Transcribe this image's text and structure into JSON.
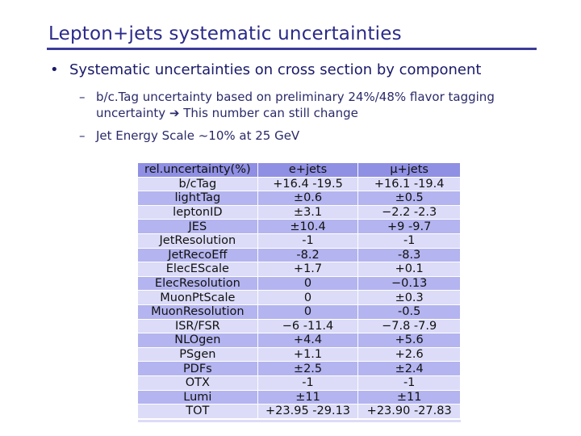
{
  "slide": {
    "title": "Lepton+jets systematic uncertainties",
    "bullet": "Systematic uncertainties on cross section by component",
    "subpoints": [
      {
        "line1": "b/c.Tag uncertainty based on preliminary 24%/48% flavor tagging",
        "line2": "uncertainty ➔ This number can still change"
      },
      {
        "line1": "Jet Energy Scale ~10% at 25 GeV"
      }
    ]
  },
  "table": {
    "headers": [
      "rel.uncertainty(%)",
      "e+jets",
      "μ+jets"
    ],
    "rows": [
      [
        "b/cTag",
        "+16.4 -19.5",
        "+16.1 -19.4"
      ],
      [
        "lightTag",
        "±0.6",
        "±0.5"
      ],
      [
        "leptonID",
        "±3.1",
        "−2.2 -2.3"
      ],
      [
        "JES",
        "±10.4",
        "+9 -9.7"
      ],
      [
        "JetResolution",
        "-1",
        "-1"
      ],
      [
        "JetRecoEff",
        "-8.2",
        "-8.3"
      ],
      [
        "ElecEScale",
        "+1.7",
        "+0.1"
      ],
      [
        "ElecResolution",
        "0",
        "−0.13"
      ],
      [
        "MuonPtScale",
        "0",
        "±0.3"
      ],
      [
        "MuonResolution",
        "0",
        "-0.5"
      ],
      [
        "ISR/FSR",
        "−6 -11.4",
        "−7.8 -7.9"
      ],
      [
        "NLOgen",
        "+4.4",
        "+5.6"
      ],
      [
        "PSgen",
        "+1.1",
        "+2.6"
      ],
      [
        "PDFs",
        "±2.5",
        "±2.4"
      ],
      [
        "OTX",
        "-1",
        "-1"
      ],
      [
        "Lumi",
        "±11",
        "±11"
      ],
      [
        "TOT",
        "+23.95 -29.13",
        "+23.90 -27.83"
      ]
    ]
  }
}
